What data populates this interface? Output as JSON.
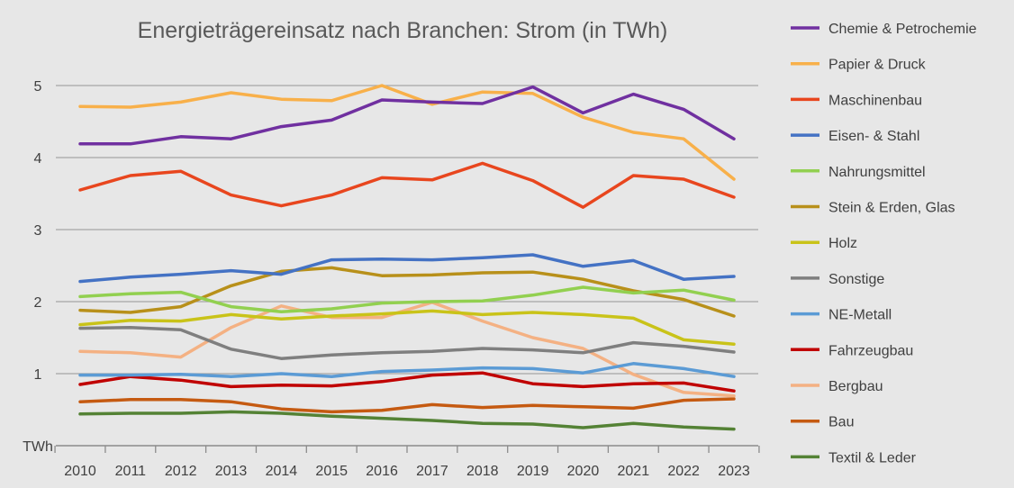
{
  "chart_data": {
    "type": "line",
    "title": "Energieträgereinsatz nach Branchen: Strom (in TWh)",
    "ylabel": "TWh",
    "xlabel": "",
    "ylim": [
      0,
      5.5
    ],
    "yticks": [
      "TWh",
      "1",
      "2",
      "3",
      "4",
      "5"
    ],
    "grid": true,
    "legend": "right",
    "x": [
      "2010",
      "2011",
      "2012",
      "2013",
      "2014",
      "2015",
      "2016",
      "2017",
      "2018",
      "2019",
      "2020",
      "2021",
      "2022",
      "2023"
    ],
    "series": [
      {
        "name": "Chemie & Petrochemie",
        "color": "#7030a0",
        "values": [
          4.19,
          4.19,
          4.29,
          4.26,
          4.43,
          4.52,
          4.8,
          4.77,
          4.75,
          4.98,
          4.62,
          4.88,
          4.67,
          4.26
        ]
      },
      {
        "name": "Papier & Druck",
        "color": "#f8b04a",
        "values": [
          4.71,
          4.7,
          4.77,
          4.9,
          4.81,
          4.79,
          5.0,
          4.74,
          4.91,
          4.89,
          4.56,
          4.35,
          4.26,
          3.7
        ]
      },
      {
        "name": "Maschinenbau",
        "color": "#e8461e",
        "values": [
          3.55,
          3.75,
          3.81,
          3.48,
          3.33,
          3.48,
          3.72,
          3.69,
          3.92,
          3.68,
          3.31,
          3.75,
          3.7,
          3.45
        ]
      },
      {
        "name": "Eisen- & Stahl",
        "color": "#4472c4",
        "values": [
          2.28,
          2.34,
          2.38,
          2.43,
          2.38,
          2.58,
          2.59,
          2.58,
          2.61,
          2.65,
          2.49,
          2.57,
          2.31,
          2.35
        ]
      },
      {
        "name": "Nahrungsmittel",
        "color": "#92d050",
        "values": [
          2.07,
          2.11,
          2.13,
          1.93,
          1.86,
          1.9,
          1.98,
          2.0,
          2.01,
          2.09,
          2.2,
          2.12,
          2.16,
          2.02
        ]
      },
      {
        "name": "Stein & Erden, Glas",
        "color": "#b8901a",
        "values": [
          1.88,
          1.85,
          1.93,
          2.22,
          2.42,
          2.47,
          2.36,
          2.37,
          2.4,
          2.41,
          2.31,
          2.15,
          2.03,
          1.8
        ]
      },
      {
        "name": "Holz",
        "color": "#c9c319",
        "values": [
          1.68,
          1.74,
          1.73,
          1.82,
          1.76,
          1.8,
          1.83,
          1.87,
          1.82,
          1.85,
          1.82,
          1.77,
          1.47,
          1.41
        ]
      },
      {
        "name": "Sonstige",
        "color": "#7f7f7f",
        "values": [
          1.63,
          1.64,
          1.61,
          1.34,
          1.21,
          1.26,
          1.29,
          1.31,
          1.35,
          1.33,
          1.29,
          1.43,
          1.38,
          1.3
        ]
      },
      {
        "name": "NE-Metall",
        "color": "#5b9bd5",
        "values": [
          0.98,
          0.98,
          0.99,
          0.96,
          1.0,
          0.96,
          1.03,
          1.05,
          1.08,
          1.07,
          1.01,
          1.14,
          1.07,
          0.96
        ]
      },
      {
        "name": "Fahrzeugbau",
        "color": "#c00000",
        "values": [
          0.85,
          0.96,
          0.91,
          0.82,
          0.84,
          0.83,
          0.89,
          0.98,
          1.01,
          0.86,
          0.82,
          0.86,
          0.87,
          0.76
        ]
      },
      {
        "name": "Bergbau",
        "color": "#f4b183",
        "values": [
          1.31,
          1.29,
          1.23,
          1.64,
          1.94,
          1.78,
          1.78,
          1.99,
          1.73,
          1.5,
          1.35,
          0.99,
          0.74,
          0.69
        ]
      },
      {
        "name": "Bau",
        "color": "#c55a11",
        "values": [
          0.61,
          0.64,
          0.64,
          0.61,
          0.51,
          0.47,
          0.49,
          0.57,
          0.53,
          0.56,
          0.54,
          0.52,
          0.63,
          0.65
        ]
      },
      {
        "name": "Textil & Leder",
        "color": "#548235",
        "values": [
          0.44,
          0.45,
          0.45,
          0.47,
          0.45,
          0.41,
          0.38,
          0.35,
          0.31,
          0.3,
          0.25,
          0.31,
          0.26,
          0.23
        ]
      }
    ]
  }
}
